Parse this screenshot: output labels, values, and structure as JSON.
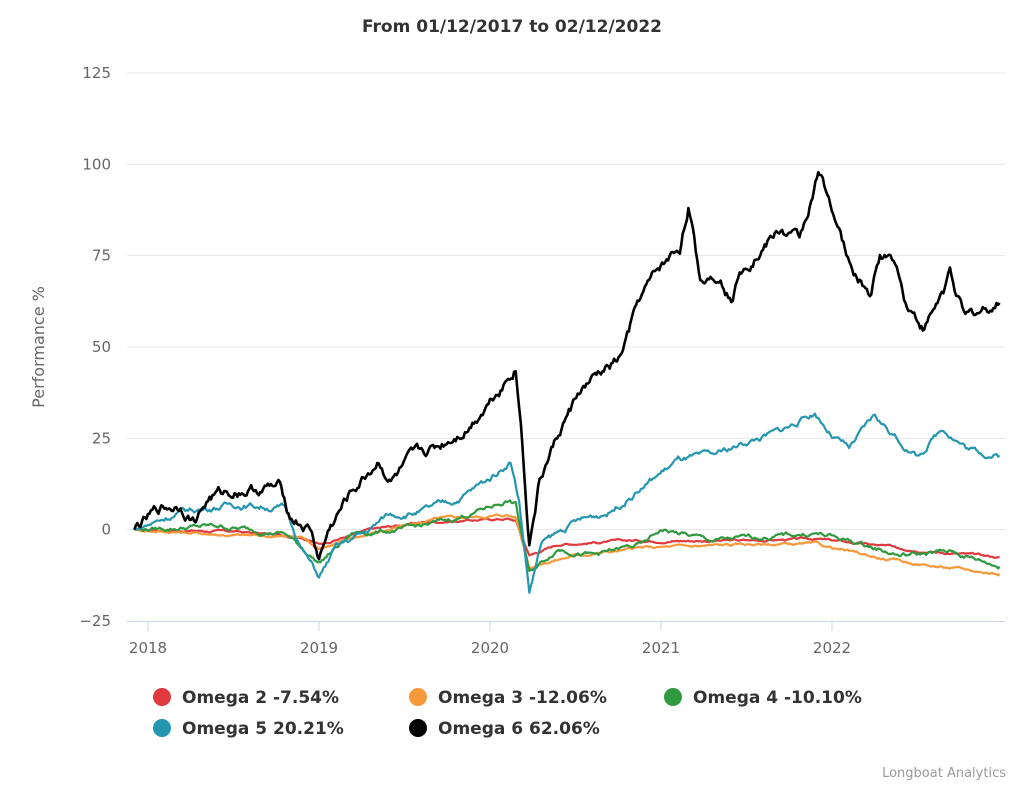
{
  "chart_data": {
    "type": "line",
    "title": "From 01/12/2017 to 02/12/2022",
    "xlabel": "",
    "ylabel": "Performance %",
    "ylim": [
      -25,
      125
    ],
    "yticks": [
      -25,
      0,
      25,
      50,
      75,
      100,
      125
    ],
    "ytick_labels": [
      "−25",
      "0",
      "25",
      "50",
      "75",
      "100",
      "125"
    ],
    "xlim": [
      2017.92,
      2022.98
    ],
    "xticks": [
      2018,
      2019,
      2020,
      2021,
      2022
    ],
    "xtick_labels": [
      "2018",
      "2019",
      "2020",
      "2021",
      "2022"
    ],
    "grid": true,
    "legend_position": "bottom",
    "credits": "Longboat Analytics",
    "series": [
      {
        "name": "Omega 2",
        "legend": "Omega 2 -7.54%",
        "color": "#e0393e",
        "noise": 0.4,
        "points": [
          [
            2017.92,
            0
          ],
          [
            2018.5,
            -0.5
          ],
          [
            2018.9,
            -2
          ],
          [
            2019.0,
            -4
          ],
          [
            2019.3,
            0
          ],
          [
            2019.6,
            2
          ],
          [
            2020.1,
            3
          ],
          [
            2020.15,
            2.5
          ],
          [
            2020.23,
            -7
          ],
          [
            2020.4,
            -4
          ],
          [
            2020.8,
            -3
          ],
          [
            2021.5,
            -3
          ],
          [
            2021.9,
            -2.5
          ],
          [
            2022.2,
            -4
          ],
          [
            2022.6,
            -6
          ],
          [
            2022.98,
            -7.54
          ]
        ]
      },
      {
        "name": "Omega 3",
        "legend": "Omega 3 -12.06%",
        "color": "#f7993a",
        "noise": 0.5,
        "points": [
          [
            2017.92,
            0
          ],
          [
            2018.5,
            -1.5
          ],
          [
            2018.9,
            -2
          ],
          [
            2019.0,
            -5
          ],
          [
            2019.3,
            -1
          ],
          [
            2019.7,
            3
          ],
          [
            2020.1,
            4
          ],
          [
            2020.15,
            3.5
          ],
          [
            2020.23,
            -10
          ],
          [
            2020.5,
            -7
          ],
          [
            2020.9,
            -5
          ],
          [
            2021.5,
            -4
          ],
          [
            2021.9,
            -4
          ],
          [
            2022.3,
            -8
          ],
          [
            2022.6,
            -10
          ],
          [
            2022.98,
            -12.06
          ]
        ]
      },
      {
        "name": "Omega 4",
        "legend": "Omega 4 -10.10%",
        "color": "#2f9a3f",
        "noise": 0.9,
        "points": [
          [
            2017.92,
            0
          ],
          [
            2018.4,
            1
          ],
          [
            2018.8,
            -1
          ],
          [
            2019.0,
            -9
          ],
          [
            2019.2,
            -1
          ],
          [
            2019.5,
            0
          ],
          [
            2019.8,
            3
          ],
          [
            2020.1,
            8
          ],
          [
            2020.15,
            7
          ],
          [
            2020.23,
            -12
          ],
          [
            2020.4,
            -5
          ],
          [
            2020.6,
            -7
          ],
          [
            2020.9,
            -4
          ],
          [
            2021.0,
            0
          ],
          [
            2021.3,
            -3
          ],
          [
            2021.6,
            -2
          ],
          [
            2021.9,
            -1
          ],
          [
            2022.1,
            -3
          ],
          [
            2022.4,
            -7
          ],
          [
            2022.7,
            -6
          ],
          [
            2022.98,
            -10.1
          ]
        ]
      },
      {
        "name": "Omega 5",
        "legend": "Omega 5 20.21%",
        "color": "#2596b0",
        "noise": 1.2,
        "points": [
          [
            2017.92,
            0
          ],
          [
            2018.2,
            5
          ],
          [
            2018.5,
            7
          ],
          [
            2018.8,
            6
          ],
          [
            2018.9,
            -5
          ],
          [
            2019.0,
            -13
          ],
          [
            2019.1,
            -5
          ],
          [
            2019.3,
            0
          ],
          [
            2019.4,
            4
          ],
          [
            2019.6,
            5
          ],
          [
            2019.8,
            8
          ],
          [
            2020.0,
            14
          ],
          [
            2020.12,
            19
          ],
          [
            2020.17,
            8
          ],
          [
            2020.23,
            -17
          ],
          [
            2020.3,
            -4
          ],
          [
            2020.5,
            2
          ],
          [
            2020.7,
            5
          ],
          [
            2020.9,
            12
          ],
          [
            2021.1,
            19
          ],
          [
            2021.3,
            20
          ],
          [
            2021.5,
            24
          ],
          [
            2021.7,
            27
          ],
          [
            2021.9,
            32
          ],
          [
            2022.0,
            26
          ],
          [
            2022.1,
            22
          ],
          [
            2022.25,
            31
          ],
          [
            2022.4,
            24
          ],
          [
            2022.5,
            20
          ],
          [
            2022.65,
            28
          ],
          [
            2022.8,
            22
          ],
          [
            2022.98,
            20.21
          ]
        ]
      },
      {
        "name": "Omega 6",
        "legend": "Omega 6 62.06%",
        "color": "#000000",
        "noise": 2.2,
        "points": [
          [
            2017.92,
            0
          ],
          [
            2018.07,
            5.5
          ],
          [
            2018.19,
            7
          ],
          [
            2018.27,
            3
          ],
          [
            2018.36,
            9
          ],
          [
            2018.54,
            11
          ],
          [
            2018.71,
            11.5
          ],
          [
            2018.78,
            11
          ],
          [
            2018.83,
            4
          ],
          [
            2018.95,
            0
          ],
          [
            2019.0,
            -8
          ],
          [
            2019.06,
            0
          ],
          [
            2019.18,
            9.5
          ],
          [
            2019.35,
            19
          ],
          [
            2019.42,
            13.5
          ],
          [
            2019.53,
            18
          ],
          [
            2019.71,
            23
          ],
          [
            2019.88,
            29
          ],
          [
            2020.0,
            36
          ],
          [
            2020.15,
            45
          ],
          [
            2020.18,
            30
          ],
          [
            2020.23,
            -3
          ],
          [
            2020.29,
            13.7
          ],
          [
            2020.41,
            27
          ],
          [
            2020.53,
            38
          ],
          [
            2020.64,
            42
          ],
          [
            2020.76,
            46.5
          ],
          [
            2020.88,
            63
          ],
          [
            2020.99,
            71
          ],
          [
            2021.11,
            77
          ],
          [
            2021.16,
            89
          ],
          [
            2021.23,
            68
          ],
          [
            2021.34,
            71
          ],
          [
            2021.42,
            63
          ],
          [
            2021.46,
            72.5
          ],
          [
            2021.58,
            77
          ],
          [
            2021.7,
            82
          ],
          [
            2021.81,
            79
          ],
          [
            2021.92,
            97
          ],
          [
            2021.99,
            90
          ],
          [
            2022.11,
            71
          ],
          [
            2022.23,
            64
          ],
          [
            2022.28,
            75
          ],
          [
            2022.37,
            74
          ],
          [
            2022.43,
            63
          ],
          [
            2022.54,
            55
          ],
          [
            2022.66,
            66
          ],
          [
            2022.69,
            71
          ],
          [
            2022.78,
            57.5
          ],
          [
            2022.89,
            60
          ],
          [
            2022.98,
            62.06
          ]
        ]
      }
    ]
  }
}
